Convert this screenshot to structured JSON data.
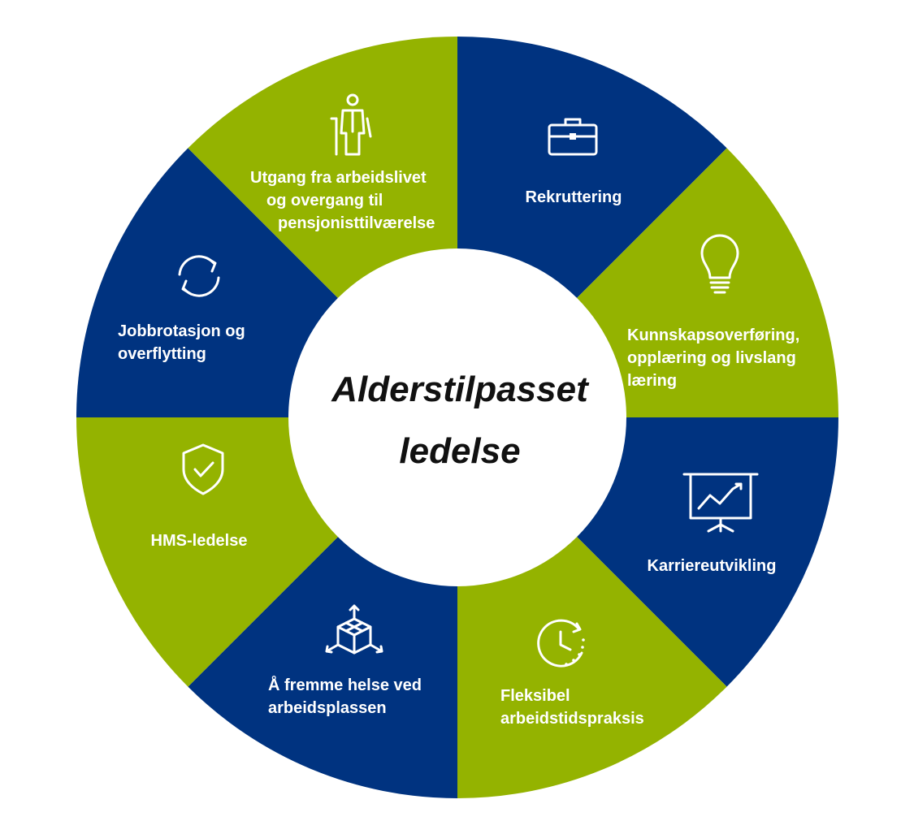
{
  "center": {
    "line1": "Alderstilpasset",
    "line2": "ledelse"
  },
  "colors": {
    "blue": "#003380",
    "green": "#94b300",
    "center": "#ffffff"
  },
  "segments": [
    {
      "id": "recruitment",
      "color": "blue",
      "icon": "briefcase-icon",
      "lines": [
        "Rekruttering"
      ]
    },
    {
      "id": "knowledge",
      "color": "green",
      "icon": "lightbulb-icon",
      "lines": [
        "Kunnskapsoverføring,",
        "opplæring og livslang",
        "læring"
      ]
    },
    {
      "id": "career",
      "color": "blue",
      "icon": "presentation-chart-icon",
      "lines": [
        "Karriereutvikling"
      ]
    },
    {
      "id": "flexible",
      "color": "green",
      "icon": "clock-icon",
      "lines": [
        "Fleksibel",
        "arbeidstidspraksis"
      ]
    },
    {
      "id": "health",
      "color": "blue",
      "icon": "cube-arrows-icon",
      "lines": [
        "Å fremme helse ved",
        "arbeidsplassen"
      ]
    },
    {
      "id": "hms",
      "color": "green",
      "icon": "shield-check-icon",
      "lines": [
        "HMS-ledelse"
      ]
    },
    {
      "id": "rotation",
      "color": "blue",
      "icon": "refresh-icon",
      "lines": [
        "Jobbrotasjon og",
        "overflytting"
      ]
    },
    {
      "id": "exit",
      "color": "green",
      "icon": "elderly-person-icon",
      "lines": [
        "Utgang fra arbeidslivet",
        "og overgang til",
        "pensjonisttilværelse"
      ]
    }
  ]
}
